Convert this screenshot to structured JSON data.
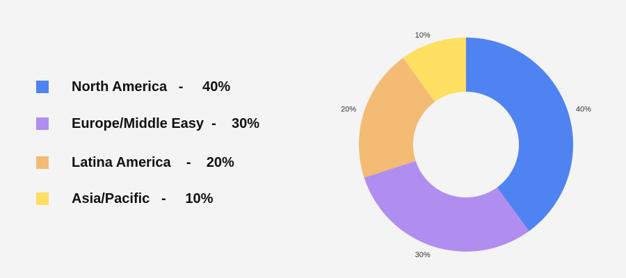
{
  "legend": {
    "items": [
      {
        "text": "North America   -     40%",
        "color": "#4f83f1"
      },
      {
        "text": "Europe/Middle Easy  -    30%",
        "color": "#b08ef0"
      },
      {
        "text": "Latina America    -    20%",
        "color": "#f3bb74"
      },
      {
        "text": "Asia/Pacific   -     10%",
        "color": "#fddf61"
      }
    ]
  },
  "chart_data": {
    "type": "pie",
    "donut": true,
    "categories": [
      "North America",
      "Europe/Middle Easy",
      "Latina America",
      "Asia/Pacific"
    ],
    "values": [
      40,
      30,
      20,
      10
    ],
    "data_labels": [
      "40%",
      "30%",
      "20%",
      "10%"
    ],
    "colors": [
      "#4f83f1",
      "#b08ef0",
      "#f3bb74",
      "#fddf61"
    ],
    "start_angle": "12 o'clock",
    "direction": "clockwise",
    "legend_placement": "left"
  }
}
